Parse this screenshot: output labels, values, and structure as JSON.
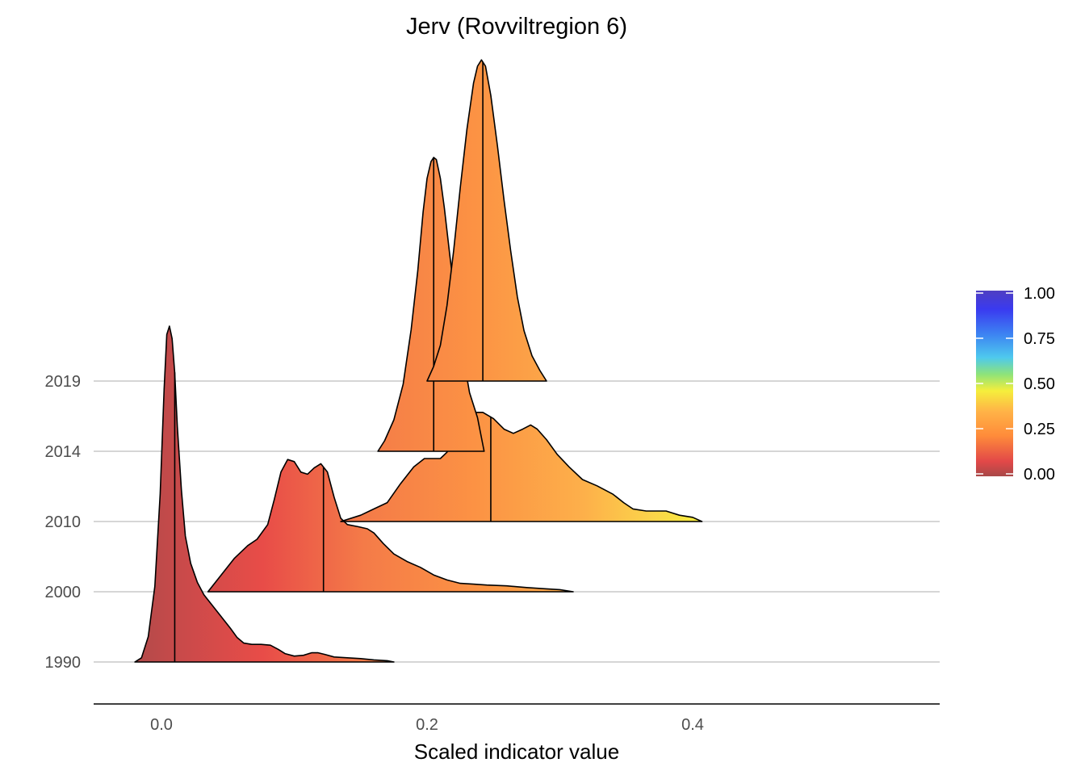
{
  "chart_data": {
    "type": "ridgeline",
    "title": "Jerv (Rovviltregion 6)",
    "xlabel": "Scaled indicator value",
    "ylabel": "",
    "xlim": [
      -0.05,
      0.58
    ],
    "x_ticks": [
      0.0,
      0.2,
      0.4
    ],
    "x_tick_labels": [
      "0.0",
      "0.2",
      "0.4"
    ],
    "categories": [
      "1990",
      "2000",
      "2010",
      "2014",
      "2019"
    ],
    "grid": "horizontal lines at each year baseline",
    "fill_gradient": "by indicator value (red at 0 to blue at 1)",
    "legend": {
      "type": "colorbar",
      "placement": "right",
      "range": [
        0,
        1
      ],
      "tick_labels": [
        "0.00",
        "0.25",
        "0.50",
        "0.75",
        "1.00"
      ],
      "colors": [
        "#b04848",
        "#e84848",
        "#ff8c3a",
        "#ffb347",
        "#f7ef3c",
        "#7fe37a",
        "#4ec9ee",
        "#3d86f2",
        "#3a3af0",
        "#4f3fc2"
      ]
    },
    "series": [
      {
        "year": "1990",
        "median": 0.01,
        "min": -0.02,
        "max": 0.175,
        "density": [
          [
            -0.02,
            0
          ],
          [
            -0.015,
            0.1
          ],
          [
            -0.01,
            0.6
          ],
          [
            -0.005,
            1.8
          ],
          [
            -0.001,
            4
          ],
          [
            0.002,
            6.5
          ],
          [
            0.004,
            7.8
          ],
          [
            0.006,
            8
          ],
          [
            0.008,
            7.7
          ],
          [
            0.01,
            6.9
          ],
          [
            0.012,
            5.6
          ],
          [
            0.015,
            4.1
          ],
          [
            0.018,
            3.0
          ],
          [
            0.022,
            2.35
          ],
          [
            0.027,
            1.9
          ],
          [
            0.032,
            1.6
          ],
          [
            0.037,
            1.4
          ],
          [
            0.042,
            1.2
          ],
          [
            0.047,
            1.0
          ],
          [
            0.052,
            0.8
          ],
          [
            0.057,
            0.58
          ],
          [
            0.062,
            0.45
          ],
          [
            0.068,
            0.42
          ],
          [
            0.075,
            0.42
          ],
          [
            0.082,
            0.4
          ],
          [
            0.088,
            0.3
          ],
          [
            0.093,
            0.2
          ],
          [
            0.1,
            0.14
          ],
          [
            0.107,
            0.16
          ],
          [
            0.113,
            0.22
          ],
          [
            0.118,
            0.22
          ],
          [
            0.123,
            0.18
          ],
          [
            0.13,
            0.12
          ],
          [
            0.14,
            0.1
          ],
          [
            0.15,
            0.08
          ],
          [
            0.16,
            0.05
          ],
          [
            0.17,
            0.03
          ],
          [
            0.175,
            0
          ]
        ]
      },
      {
        "year": "2000",
        "median": 0.122,
        "min": 0.035,
        "max": 0.31,
        "density": [
          [
            0.035,
            0
          ],
          [
            0.045,
            0.4
          ],
          [
            0.055,
            0.8
          ],
          [
            0.065,
            1.1
          ],
          [
            0.072,
            1.25
          ],
          [
            0.08,
            1.6
          ],
          [
            0.085,
            2.2
          ],
          [
            0.09,
            2.85
          ],
          [
            0.095,
            3.15
          ],
          [
            0.1,
            3.1
          ],
          [
            0.105,
            2.85
          ],
          [
            0.11,
            2.8
          ],
          [
            0.115,
            2.95
          ],
          [
            0.12,
            3.05
          ],
          [
            0.125,
            2.85
          ],
          [
            0.13,
            2.25
          ],
          [
            0.135,
            1.75
          ],
          [
            0.14,
            1.6
          ],
          [
            0.148,
            1.55
          ],
          [
            0.155,
            1.5
          ],
          [
            0.16,
            1.4
          ],
          [
            0.167,
            1.15
          ],
          [
            0.175,
            0.9
          ],
          [
            0.185,
            0.72
          ],
          [
            0.195,
            0.58
          ],
          [
            0.205,
            0.4
          ],
          [
            0.215,
            0.28
          ],
          [
            0.225,
            0.2
          ],
          [
            0.235,
            0.18
          ],
          [
            0.245,
            0.16
          ],
          [
            0.26,
            0.14
          ],
          [
            0.275,
            0.1
          ],
          [
            0.29,
            0.07
          ],
          [
            0.3,
            0.05
          ],
          [
            0.31,
            0
          ]
        ]
      },
      {
        "year": "2010",
        "median": 0.248,
        "min": 0.135,
        "max": 0.407,
        "density": [
          [
            0.135,
            0
          ],
          [
            0.15,
            0.15
          ],
          [
            0.16,
            0.3
          ],
          [
            0.17,
            0.45
          ],
          [
            0.18,
            0.9
          ],
          [
            0.19,
            1.3
          ],
          [
            0.198,
            1.5
          ],
          [
            0.205,
            1.5
          ],
          [
            0.21,
            1.5
          ],
          [
            0.215,
            1.65
          ],
          [
            0.22,
            2.1
          ],
          [
            0.228,
            2.45
          ],
          [
            0.235,
            2.6
          ],
          [
            0.242,
            2.6
          ],
          [
            0.25,
            2.45
          ],
          [
            0.258,
            2.2
          ],
          [
            0.265,
            2.1
          ],
          [
            0.272,
            2.2
          ],
          [
            0.278,
            2.3
          ],
          [
            0.283,
            2.2
          ],
          [
            0.29,
            1.95
          ],
          [
            0.298,
            1.6
          ],
          [
            0.307,
            1.3
          ],
          [
            0.317,
            1.0
          ],
          [
            0.328,
            0.85
          ],
          [
            0.34,
            0.65
          ],
          [
            0.348,
            0.45
          ],
          [
            0.355,
            0.3
          ],
          [
            0.365,
            0.25
          ],
          [
            0.38,
            0.25
          ],
          [
            0.39,
            0.15
          ],
          [
            0.4,
            0.1
          ],
          [
            0.407,
            0
          ]
        ]
      },
      {
        "year": "2014",
        "median": 0.205,
        "min": 0.163,
        "max": 0.243,
        "density": [
          [
            0.163,
            0
          ],
          [
            0.168,
            0.25
          ],
          [
            0.175,
            0.75
          ],
          [
            0.182,
            1.6
          ],
          [
            0.188,
            2.9
          ],
          [
            0.193,
            4.3
          ],
          [
            0.197,
            5.7
          ],
          [
            0.2,
            6.5
          ],
          [
            0.203,
            6.9
          ],
          [
            0.205,
            7.0
          ],
          [
            0.207,
            6.95
          ],
          [
            0.21,
            6.5
          ],
          [
            0.213,
            5.8
          ],
          [
            0.217,
            4.7
          ],
          [
            0.222,
            3.4
          ],
          [
            0.227,
            2.3
          ],
          [
            0.232,
            1.4
          ],
          [
            0.238,
            0.8
          ],
          [
            0.243,
            0
          ]
        ]
      },
      {
        "year": "2019",
        "median": 0.242,
        "min": 0.2,
        "max": 0.29,
        "density": [
          [
            0.2,
            0
          ],
          [
            0.205,
            0.35
          ],
          [
            0.21,
            0.85
          ],
          [
            0.215,
            1.8
          ],
          [
            0.22,
            3.1
          ],
          [
            0.225,
            4.6
          ],
          [
            0.23,
            6.0
          ],
          [
            0.235,
            7.1
          ],
          [
            0.238,
            7.5
          ],
          [
            0.241,
            7.65
          ],
          [
            0.244,
            7.5
          ],
          [
            0.248,
            6.8
          ],
          [
            0.253,
            5.6
          ],
          [
            0.258,
            4.3
          ],
          [
            0.263,
            3.1
          ],
          [
            0.268,
            2.0
          ],
          [
            0.273,
            1.2
          ],
          [
            0.279,
            0.6
          ],
          [
            0.285,
            0.25
          ],
          [
            0.29,
            0
          ]
        ]
      }
    ]
  }
}
